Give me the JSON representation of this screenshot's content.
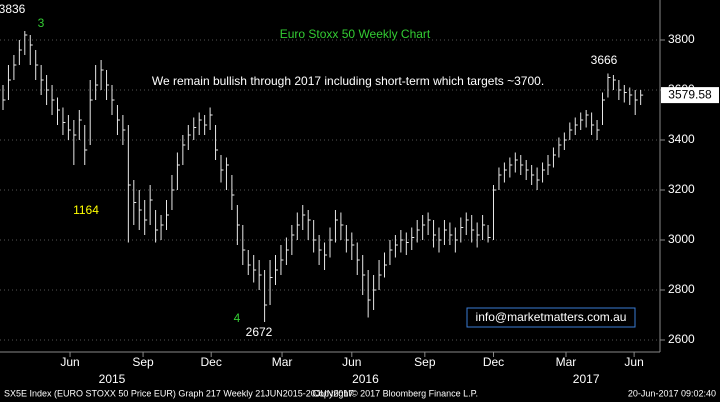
{
  "chart_data": {
    "type": "ohlc",
    "title": "Euro Stoxx 50 Weekly Chart",
    "subtitle": "We remain bullish through 2017 including short-term which targets ~3700.",
    "annotations": [
      "3836",
      "3",
      "1164",
      "4",
      "2672",
      "3666"
    ],
    "contact": "info@marketmatters.com.au",
    "footer": [
      "SX5E Index (EURO STOXX 50 Price EUR) Graph 217  Weekly 21JUN2015-20JUN2017",
      "Copyright© 2017 Bloomberg Finance L.P.",
      "20-Jun-2017 09:02:40"
    ],
    "color": "#e8e8e8",
    "grid": true,
    "xlim": [
      -0.55,
      120.55
    ],
    "xticks": [
      {
        "value": 12.3,
        "label": "Jun"
      },
      {
        "value": 25.7,
        "label": "Sep"
      },
      {
        "value": 38.2,
        "label": "Dec"
      },
      {
        "value": 51.2,
        "label": "Mar"
      },
      {
        "value": 64,
        "label": "Jun"
      },
      {
        "value": 77.4,
        "label": "Sep"
      },
      {
        "value": 90,
        "label": "Dec"
      },
      {
        "value": 103.3,
        "label": "Mar"
      },
      {
        "value": 115.8,
        "label": "Jun"
      }
    ],
    "year_ticks": [
      {
        "value": 20,
        "label": "2015"
      },
      {
        "value": 66.5,
        "label": "2016"
      },
      {
        "value": 107,
        "label": "2017"
      }
    ],
    "ylim": [
      2552,
      3960
    ],
    "yticks": [
      2600,
      2800,
      3000,
      3200,
      3400,
      3600,
      3800
    ],
    "high": [
      3620,
      3700,
      3740,
      3800,
      3836,
      3820,
      3760,
      3700,
      3660,
      3620,
      3570,
      3530,
      3500,
      3480,
      3520,
      3460,
      3640,
      3700,
      3720,
      3680,
      3620,
      3540,
      3500,
      3460,
      3240,
      3200,
      3160,
      3220,
      3120,
      3100,
      3160,
      3260,
      3350,
      3420,
      3460,
      3490,
      3510,
      3500,
      3530,
      3460,
      3340,
      3330,
      3260,
      3140,
      3060,
      2960,
      2940,
      2920,
      2880,
      2920,
      2940,
      2980,
      3010,
      3060,
      3110,
      3140,
      3120,
      3080,
      3020,
      2990,
      3050,
      3120,
      3110,
      3060,
      3030,
      2990,
      2940,
      2880,
      2860,
      2920,
      2950,
      3000,
      3020,
      3040,
      3030,
      3050,
      3080,
      3100,
      3110,
      3080,
      3050,
      3080,
      3070,
      3050,
      3090,
      3110,
      3100,
      3070,
      3100,
      3060,
      3220,
      3290,
      3310,
      3330,
      3350,
      3340,
      3320,
      3300,
      3290,
      3310,
      3340,
      3370,
      3410,
      3430,
      3470,
      3490,
      3510,
      3520,
      3510,
      3480,
      3590,
      3666,
      3660,
      3640,
      3620,
      3610,
      3600,
      3600
    ],
    "low": [
      3520,
      3560,
      3640,
      3700,
      3740,
      3700,
      3640,
      3580,
      3540,
      3500,
      3460,
      3420,
      3400,
      3300,
      3400,
      3300,
      3380,
      3560,
      3600,
      3560,
      3500,
      3420,
      3380,
      2990,
      3060,
      3040,
      3020,
      3060,
      2990,
      3000,
      3040,
      3120,
      3200,
      3300,
      3360,
      3400,
      3420,
      3420,
      3440,
      3320,
      3230,
      3200,
      3120,
      2980,
      2900,
      2860,
      2830,
      2800,
      2672,
      2740,
      2820,
      2860,
      2900,
      2940,
      3000,
      3040,
      3000,
      2950,
      2900,
      2880,
      2930,
      2990,
      3000,
      2950,
      2920,
      2860,
      2780,
      2690,
      2720,
      2800,
      2850,
      2900,
      2930,
      2950,
      2940,
      2960,
      2990,
      3000,
      3020,
      2970,
      2950,
      2980,
      2980,
      2950,
      2990,
      3020,
      2990,
      2970,
      3000,
      2990,
      3000,
      3200,
      3230,
      3250,
      3270,
      3260,
      3240,
      3220,
      3200,
      3230,
      3260,
      3290,
      3330,
      3360,
      3400,
      3420,
      3440,
      3450,
      3420,
      3400,
      3460,
      3570,
      3600,
      3560,
      3550,
      3540,
      3500,
      3540
    ],
    "close": [
      3560,
      3640,
      3700,
      3760,
      3820,
      3780,
      3700,
      3640,
      3600,
      3560,
      3520,
      3470,
      3440,
      3420,
      3480,
      3360,
      3560,
      3620,
      3680,
      3620,
      3560,
      3480,
      3440,
      3220,
      3150,
      3120,
      3080,
      3160,
      3040,
      3060,
      3100,
      3200,
      3300,
      3380,
      3420,
      3450,
      3480,
      3460,
      3500,
      3360,
      3280,
      3300,
      3180,
      3060,
      2960,
      2900,
      2880,
      2860,
      2740,
      2850,
      2880,
      2920,
      2960,
      3020,
      3060,
      3100,
      3080,
      3000,
      2960,
      2940,
      3000,
      3080,
      3060,
      3000,
      2980,
      2920,
      2860,
      2760,
      2800,
      2860,
      2900,
      2960,
      2980,
      3000,
      2990,
      3010,
      3040,
      3060,
      3080,
      3020,
      3000,
      3040,
      3020,
      3000,
      3050,
      3080,
      3040,
      3020,
      3060,
      3010,
      3200,
      3260,
      3280,
      3300,
      3320,
      3300,
      3280,
      3260,
      3240,
      3280,
      3300,
      3340,
      3380,
      3400,
      3440,
      3460,
      3480,
      3500,
      3460,
      3440,
      3560,
      3650,
      3640,
      3600,
      3590,
      3580,
      3560,
      3579.58
    ]
  }
}
